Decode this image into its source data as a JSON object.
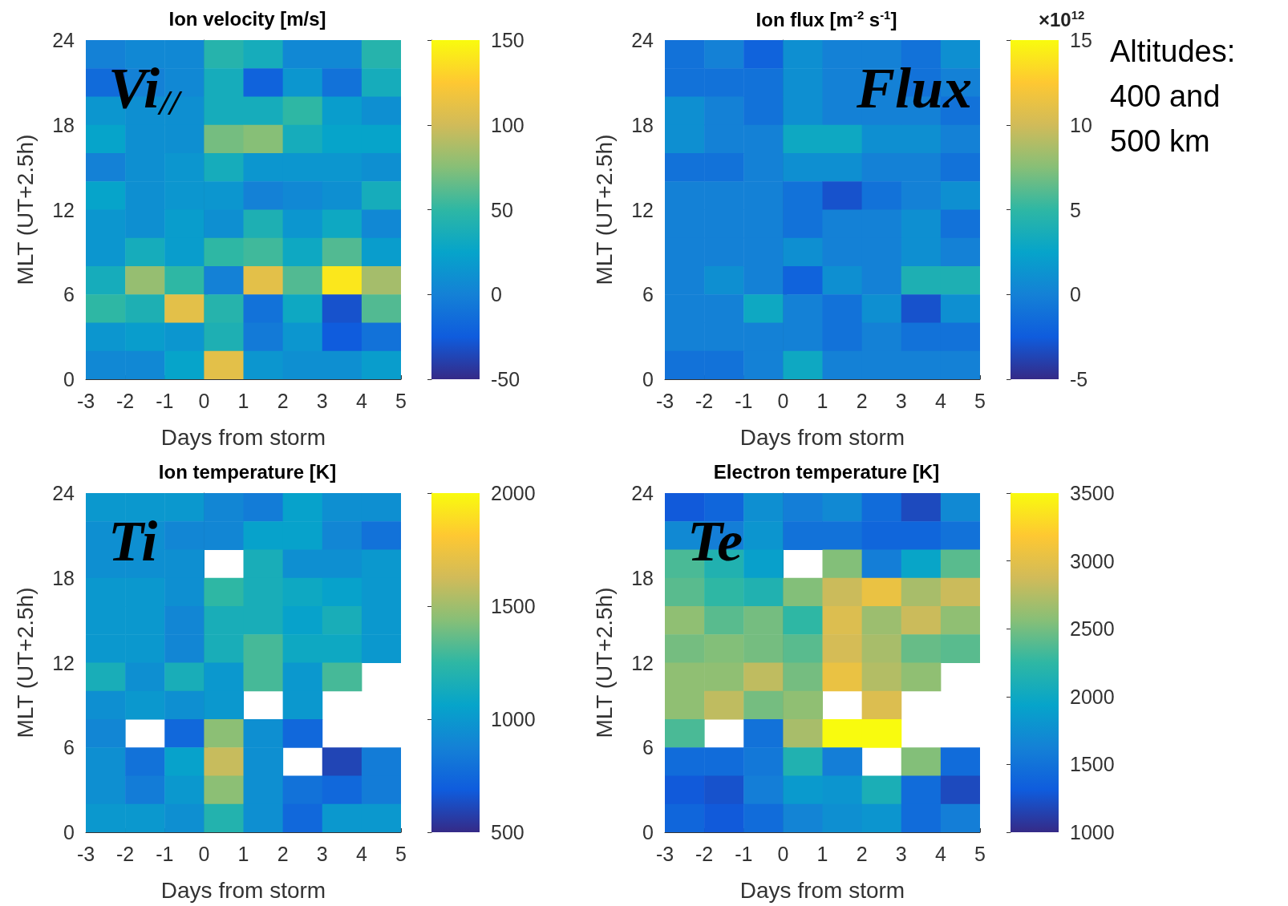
{
  "chart_data": [
    {
      "type": "heatmap",
      "title": "Ion velocity [m/s]",
      "xlabel": "Days from storm",
      "ylabel": "MLT (UT+2.5h)",
      "annotations": [
        "Vi$_{//}$"
      ],
      "xlim": [
        -3,
        5
      ],
      "xticks": [
        -3,
        -2,
        -1,
        0,
        1,
        2,
        3,
        4,
        5
      ],
      "ylim": [
        0,
        24
      ],
      "yticks": [
        0,
        6,
        12,
        18,
        24
      ],
      "clim": [
        -50,
        150
      ],
      "cticks": [
        -50,
        0,
        50,
        100,
        150
      ],
      "cells": [
        [
          0,
          5,
          5,
          45,
          35,
          5,
          5,
          45
        ],
        [
          -15,
          0,
          5,
          35,
          -20,
          15,
          -10,
          35
        ],
        [
          15,
          10,
          10,
          35,
          35,
          50,
          20,
          10
        ],
        [
          25,
          10,
          10,
          70,
          75,
          35,
          25,
          25
        ],
        [
          0,
          10,
          15,
          35,
          15,
          15,
          15,
          10
        ],
        [
          25,
          10,
          15,
          15,
          0,
          5,
          10,
          35
        ],
        [
          15,
          10,
          20,
          10,
          40,
          15,
          30,
          5
        ],
        [
          15,
          35,
          20,
          50,
          55,
          30,
          60,
          20
        ],
        [
          35,
          80,
          50,
          0,
          110,
          60,
          140,
          85
        ],
        [
          50,
          40,
          110,
          45,
          -10,
          30,
          -30,
          60
        ],
        [
          15,
          20,
          15,
          40,
          -5,
          15,
          -25,
          -10
        ],
        [
          5,
          5,
          25,
          110,
          15,
          10,
          10,
          20
        ]
      ]
    },
    {
      "type": "heatmap",
      "title": "Ion flux [m$^{-2}$ s$^{-1}$]",
      "xlabel": "Days from storm",
      "ylabel": "MLT (UT+2.5h)",
      "clabel": "×10$^{12}$",
      "annotations": [
        "Flux",
        "Altitudes: 400 and 500 km"
      ],
      "xlim": [
        -3,
        5
      ],
      "xticks": [
        -3,
        -2,
        -1,
        0,
        1,
        2,
        3,
        4,
        5
      ],
      "ylim": [
        0,
        24
      ],
      "yticks": [
        0,
        6,
        12,
        18,
        24
      ],
      "clim": [
        -5,
        15
      ],
      "cticks": [
        -5,
        0,
        5,
        10,
        15
      ],
      "cells": [
        [
          -1,
          0,
          -2,
          1,
          0,
          0,
          -1,
          1
        ],
        [
          -1,
          -1,
          -1,
          1,
          0,
          0,
          -1,
          0
        ],
        [
          1,
          0,
          -1,
          1,
          0,
          0,
          0,
          -1
        ],
        [
          1,
          0,
          0,
          3,
          3,
          1,
          1,
          0
        ],
        [
          -1,
          -1,
          0,
          1,
          1,
          0,
          0,
          -1
        ],
        [
          0,
          0,
          0,
          -1,
          -3,
          -1,
          0,
          1
        ],
        [
          0,
          0,
          0,
          -1,
          0,
          0,
          1,
          -1
        ],
        [
          0,
          0,
          0,
          1,
          0,
          0,
          1,
          0
        ],
        [
          0,
          1,
          0,
          -2,
          1,
          0,
          4,
          4
        ],
        [
          0,
          0,
          3,
          0,
          -1,
          1,
          -3,
          1
        ],
        [
          0,
          0,
          0,
          0,
          -1,
          0,
          -1,
          -1
        ],
        [
          -1,
          -1,
          0,
          3,
          0,
          0,
          0,
          0
        ]
      ]
    },
    {
      "type": "heatmap",
      "title": "Ion temperature [K]",
      "xlabel": "Days from storm",
      "ylabel": "MLT (UT+2.5h)",
      "annotations": [
        "Ti"
      ],
      "xlim": [
        -3,
        5
      ],
      "xticks": [
        -3,
        -2,
        -1,
        0,
        1,
        2,
        3,
        4,
        5
      ],
      "ylim": [
        0,
        24
      ],
      "yticks": [
        0,
        6,
        12,
        18,
        24
      ],
      "clim": [
        500,
        2000
      ],
      "cticks": [
        500,
        1000,
        1500,
        2000
      ],
      "cells": [
        [
          1000,
          1000,
          1000,
          900,
          850,
          1050,
          950,
          950
        ],
        [
          950,
          950,
          900,
          900,
          1050,
          1050,
          900,
          800
        ],
        [
          950,
          950,
          950,
          null,
          1150,
          950,
          950,
          1000
        ],
        [
          1000,
          1000,
          950,
          1250,
          1150,
          1100,
          1050,
          1000
        ],
        [
          1000,
          1000,
          900,
          1150,
          1150,
          1050,
          1150,
          1000
        ],
        [
          1000,
          1000,
          900,
          1150,
          1300,
          1100,
          1100,
          1000
        ],
        [
          1150,
          950,
          1150,
          1000,
          1300,
          1000,
          1300,
          null
        ],
        [
          950,
          1000,
          950,
          1000,
          null,
          1000,
          null,
          null
        ],
        [
          900,
          null,
          750,
          1450,
          950,
          750,
          null,
          null
        ],
        [
          950,
          800,
          1050,
          1600,
          950,
          null,
          600,
          850
        ],
        [
          950,
          850,
          1000,
          1450,
          950,
          800,
          750,
          850
        ],
        [
          1000,
          1000,
          950,
          1200,
          950,
          750,
          1000,
          1000
        ]
      ]
    },
    {
      "type": "heatmap",
      "title": "Electron temperature [K]",
      "xlabel": "Days from storm",
      "ylabel": "MLT (UT+2.5h)",
      "annotations": [
        "Te"
      ],
      "xlim": [
        -3,
        5
      ],
      "xticks": [
        -3,
        -2,
        -1,
        0,
        1,
        2,
        3,
        4,
        5
      ],
      "ylim": [
        0,
        24
      ],
      "yticks": [
        0,
        6,
        12,
        18,
        24
      ],
      "clim": [
        1000,
        3500
      ],
      "cticks": [
        1000,
        1500,
        2000,
        2500,
        3000,
        3500
      ],
      "cells": [
        [
          1300,
          1400,
          1750,
          1600,
          1700,
          1450,
          1200,
          1700
        ],
        [
          1700,
          1600,
          1800,
          1500,
          1500,
          1400,
          1400,
          1500
        ],
        [
          2350,
          2150,
          1900,
          null,
          2550,
          1600,
          1950,
          2400
        ],
        [
          2400,
          2250,
          2150,
          2550,
          2850,
          3050,
          2700,
          2850
        ],
        [
          2600,
          2400,
          2500,
          2250,
          2950,
          2650,
          2850,
          2600
        ],
        [
          2500,
          2550,
          2500,
          2400,
          2900,
          2700,
          2450,
          2400
        ],
        [
          2600,
          2600,
          2800,
          2500,
          3050,
          2750,
          2600,
          null
        ],
        [
          2600,
          2800,
          2500,
          2600,
          null,
          2950,
          null,
          null
        ],
        [
          2350,
          null,
          1500,
          2700,
          3500,
          3500,
          null,
          null
        ],
        [
          1450,
          1450,
          1550,
          2150,
          1600,
          null,
          2550,
          1450
        ],
        [
          1300,
          1250,
          1600,
          1850,
          1800,
          2100,
          1450,
          1200
        ],
        [
          1400,
          1300,
          1450,
          1650,
          1750,
          1800,
          1450,
          1600
        ]
      ]
    }
  ]
}
